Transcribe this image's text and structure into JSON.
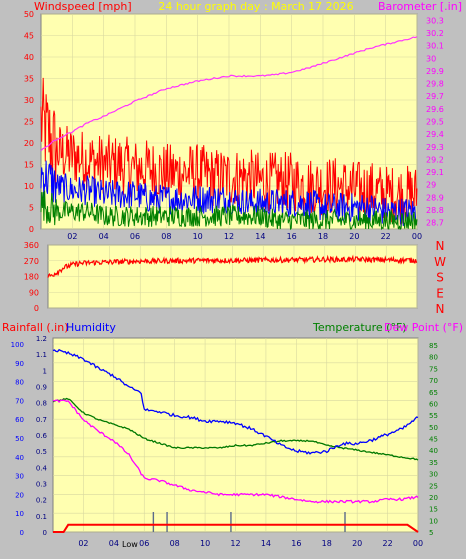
{
  "header": {
    "left": "Windspeed [mph]",
    "center": "24 hour graph day : March 17 2026",
    "right": "Barometer [.in]"
  },
  "lower_header": {
    "rain": "Rainfall (.in)",
    "humidity": "Humidity",
    "temperature": "Temperature (°F)",
    "dewpoint": "Dew Point (°F)"
  },
  "colors": {
    "background": "#c0c0c0",
    "plot_bg": "#ffffb0",
    "wind_gust": "#ff0000",
    "wind_avg": "#0000ff",
    "wind_min": "#008000",
    "barometer": "#ff33ff",
    "direction": "#ff0000",
    "rain": "#ff0000",
    "humidity": "#0000ff",
    "temperature": "#007800",
    "dewpoint": "#ff00ff"
  },
  "chart_data": [
    {
      "type": "line",
      "panel": "wind-barometer",
      "x_ticks": [
        "02",
        "04",
        "06",
        "08",
        "10",
        "12",
        "14",
        "16",
        "18",
        "20",
        "22",
        "00"
      ],
      "x_range_hours": [
        0,
        24
      ],
      "y_left_ticks": [
        "50",
        "45",
        "40",
        "35",
        "30",
        "25",
        "20",
        "15",
        "10",
        "5",
        "0"
      ],
      "y_left_range": [
        0,
        50
      ],
      "y_right_ticks": [
        "30.3",
        "30.2",
        "30.1",
        "30",
        "29.9",
        "29.8",
        "29.7",
        "29.6",
        "29.5",
        "29.4",
        "29.3",
        "29.2",
        "29.1",
        "29",
        "28.9",
        "28.8",
        "28.7"
      ],
      "y_right_range": [
        28.65,
        30.35
      ],
      "series": [
        {
          "name": "Windspeed [mph]",
          "key": "gust",
          "x": [
            0,
            1,
            2,
            3,
            4,
            5,
            6,
            7,
            8,
            9,
            10,
            11,
            12,
            13,
            14,
            15,
            16,
            17,
            18,
            19,
            20,
            21,
            22,
            23,
            24
          ],
          "values": [
            25,
            18,
            17,
            16,
            15,
            15,
            14,
            14,
            13,
            13,
            13,
            12,
            12,
            12,
            11,
            11,
            11,
            10,
            10,
            10,
            9,
            9,
            8,
            8,
            8
          ]
        },
        {
          "key": "avg",
          "x": [
            0,
            1,
            2,
            3,
            4,
            5,
            6,
            7,
            8,
            9,
            10,
            11,
            12,
            13,
            14,
            15,
            16,
            17,
            18,
            19,
            20,
            21,
            22,
            23,
            24
          ],
          "values": [
            13,
            10,
            9,
            9,
            8,
            8,
            8,
            7,
            7,
            7,
            7,
            7,
            7,
            6,
            6,
            6,
            6,
            6,
            5,
            5,
            5,
            5,
            4,
            4,
            4
          ]
        },
        {
          "key": "min",
          "x": [
            0,
            1,
            2,
            3,
            4,
            5,
            6,
            7,
            8,
            9,
            10,
            11,
            12,
            13,
            14,
            15,
            16,
            17,
            18,
            19,
            20,
            21,
            22,
            23,
            24
          ],
          "values": [
            6,
            4,
            4,
            4,
            3,
            3,
            3,
            3,
            3,
            3,
            3,
            3,
            3,
            3,
            3,
            2,
            2,
            2,
            2,
            2,
            2,
            2,
            2,
            2,
            2
          ]
        },
        {
          "name": "Barometer [.in]",
          "key": "baro",
          "x": [
            0,
            1,
            2,
            3,
            4,
            5,
            6,
            7,
            8,
            9,
            10,
            11,
            12,
            13,
            14,
            15,
            16,
            17,
            18,
            19,
            20,
            21,
            22,
            23,
            24
          ],
          "values": [
            29.27,
            29.36,
            29.42,
            29.49,
            29.54,
            29.6,
            29.66,
            29.71,
            29.76,
            29.79,
            29.82,
            29.84,
            29.86,
            29.86,
            29.86,
            29.87,
            29.89,
            29.92,
            29.96,
            30,
            30.04,
            30.08,
            30.11,
            30.14,
            30.17
          ]
        }
      ]
    },
    {
      "type": "line",
      "panel": "wind-direction",
      "x_range_hours": [
        0,
        24
      ],
      "y_ticks": [
        "360",
        "270",
        "180",
        "90",
        "0"
      ],
      "y_range": [
        0,
        360
      ],
      "compass": [
        "N",
        "W",
        "S",
        "E",
        "N"
      ],
      "series": [
        {
          "key": "direction",
          "x": [
            0,
            0.3,
            0.6,
            1,
            1.5,
            2,
            3,
            4,
            5,
            6,
            7,
            8,
            9,
            10,
            11,
            12,
            13,
            14,
            15,
            16,
            17,
            18,
            19,
            20,
            21,
            22,
            23,
            24
          ],
          "values": [
            180,
            190,
            205,
            230,
            245,
            255,
            260,
            262,
            265,
            268,
            268,
            270,
            270,
            272,
            272,
            272,
            272,
            274,
            274,
            275,
            276,
            278,
            276,
            278,
            276,
            275,
            274,
            272
          ]
        }
      ]
    },
    {
      "type": "line",
      "panel": "rain-humidity-temperature",
      "x_ticks": [
        "02",
        "04",
        "06",
        "08",
        "10",
        "12",
        "14",
        "16",
        "18",
        "20",
        "22",
        "00"
      ],
      "x_range_hours": [
        0,
        24
      ],
      "rain_ticks": [
        "1.2",
        "1.1",
        "1",
        "0.9",
        "0.8",
        "0.7",
        "0.6",
        "0.5",
        "0.4",
        "0.3",
        "0.2",
        "0.1",
        "0"
      ],
      "rain_range": [
        0,
        1.2
      ],
      "humidity_ticks": [
        "100",
        "90",
        "80",
        "70",
        "60",
        "50",
        "40",
        "30",
        "20",
        "10",
        "0"
      ],
      "humidity_range": [
        0,
        100
      ],
      "temp_ticks": [
        "85",
        "80",
        "75",
        "70",
        "65",
        "60",
        "55",
        "50",
        "45",
        "40",
        "35",
        "30",
        "25",
        "20",
        "15",
        "10",
        "5"
      ],
      "temp_range": [
        5,
        88
      ],
      "annotation": "Low",
      "series": [
        {
          "name": "Rainfall (.in)",
          "key": "rain",
          "x": [
            0,
            0.7,
            1,
            23,
            23.3,
            24
          ],
          "values": [
            0,
            0,
            0.02,
            0.02,
            0.02,
            0
          ]
        },
        {
          "name": "Humidity",
          "key": "humidity",
          "x": [
            0,
            1,
            2,
            3,
            4,
            5,
            5.8,
            6,
            7,
            8,
            9,
            10,
            11,
            12,
            13,
            14,
            15,
            16,
            17,
            18,
            19,
            20,
            21,
            22,
            23,
            24
          ],
          "values": [
            97,
            95,
            92,
            87,
            83,
            77,
            74,
            65,
            64,
            62,
            61,
            59,
            59,
            58,
            55,
            51,
            46,
            43,
            42,
            43,
            47,
            47,
            49,
            52,
            55,
            61
          ]
        },
        {
          "name": "Temperature (°F)",
          "key": "temp",
          "x": [
            0,
            1,
            2,
            3,
            4,
            5,
            6,
            7,
            8,
            9,
            10,
            11,
            12,
            13,
            14,
            15,
            16,
            17,
            18,
            19,
            20,
            21,
            22,
            23,
            24
          ],
          "values": [
            61,
            62,
            56,
            53,
            51,
            49,
            45,
            43,
            41,
            41,
            41,
            41,
            42,
            42,
            43,
            44,
            44,
            44,
            42,
            41,
            40,
            39,
            38,
            37,
            36
          ]
        },
        {
          "name": "Dew Point (°F)",
          "key": "dew",
          "x": [
            0,
            1,
            2,
            3,
            4,
            5,
            6,
            7,
            8,
            9,
            10,
            11,
            12,
            13,
            14,
            15,
            16,
            17,
            18,
            19,
            20,
            21,
            22,
            23,
            24
          ],
          "values": [
            61,
            61,
            53,
            48,
            44,
            38,
            28,
            27,
            25,
            23,
            22,
            21,
            21,
            21,
            21,
            20,
            19,
            18,
            18,
            18,
            18,
            18,
            19,
            19,
            20
          ]
        }
      ]
    }
  ]
}
